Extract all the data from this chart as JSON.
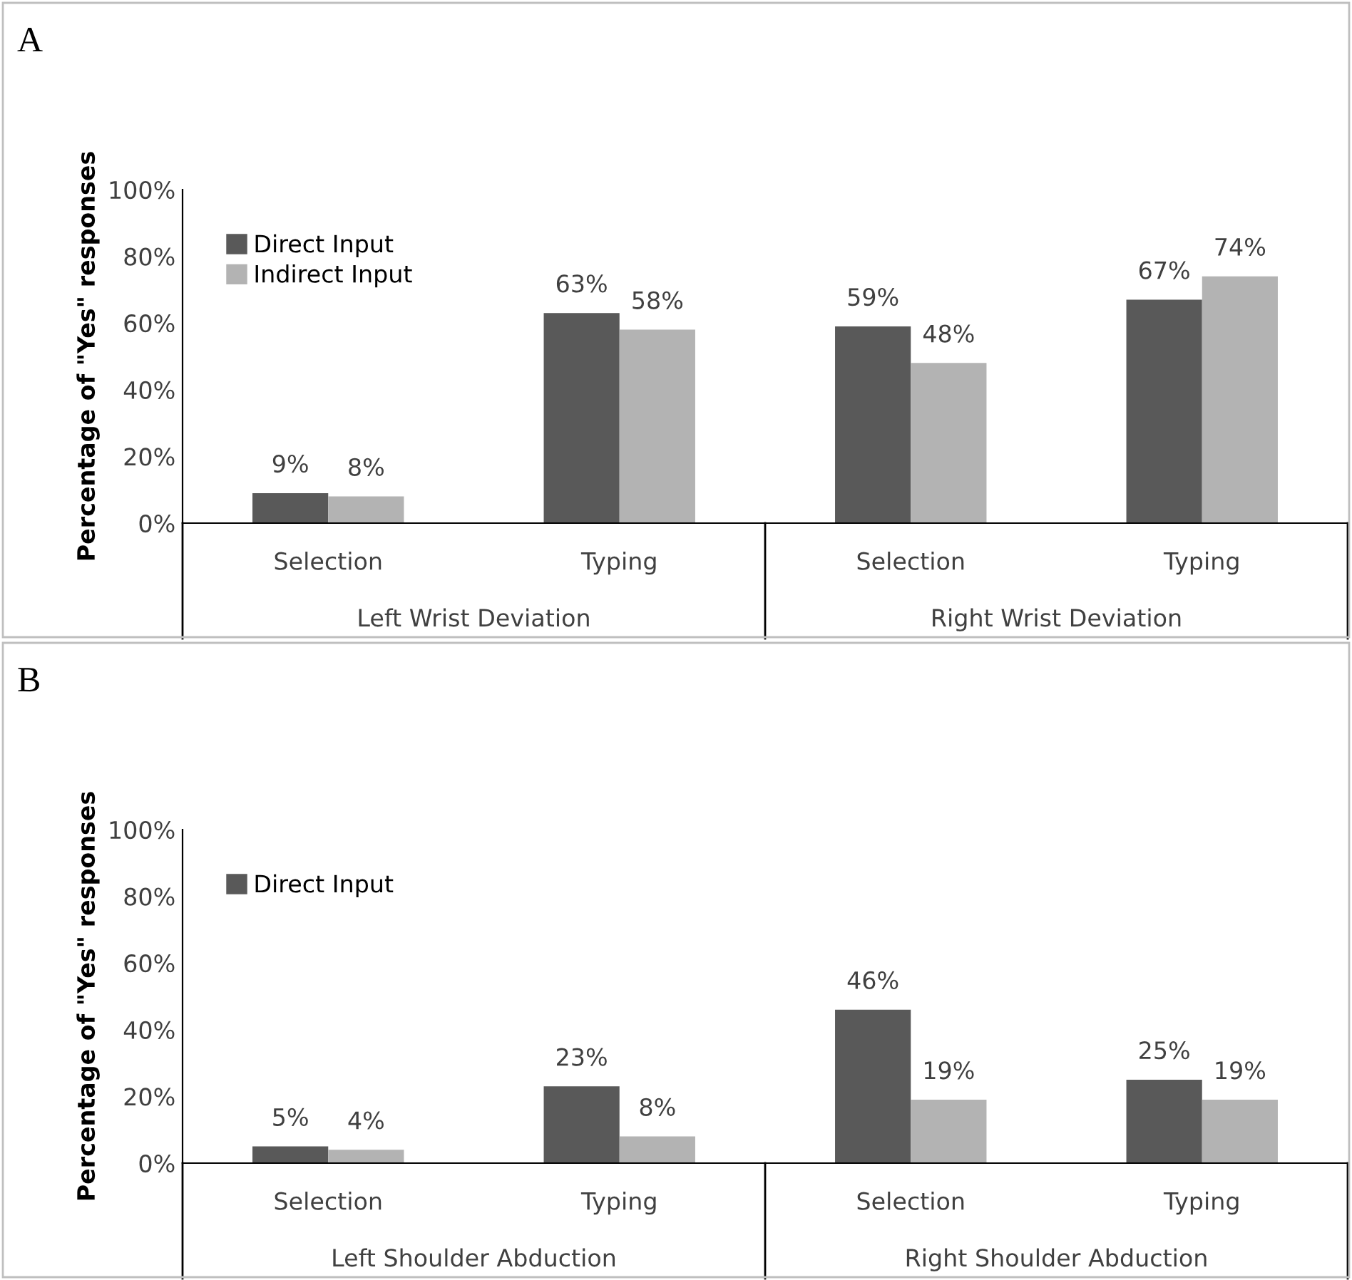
{
  "chart_data": [
    {
      "type": "bar",
      "title": "A",
      "ylabel": "Percentage of \"Yes\" responses",
      "categories": [
        "Selection",
        "Typing",
        "Selection",
        "Typing"
      ],
      "annotations": [
        "Left Wrist Deviation",
        "Right Wrist Deviation"
      ],
      "series": [
        {
          "name": "Direct Input",
          "color": "#595959",
          "values": [
            9,
            63,
            59,
            67
          ],
          "value_labels": [
            "9%",
            "63%",
            "59%",
            "67%"
          ]
        },
        {
          "name": "Indirect Input",
          "color": "#b3b3b3",
          "values": [
            8,
            58,
            48,
            74
          ],
          "value_labels": [
            "8%",
            "58%",
            "48%",
            "74%"
          ]
        }
      ],
      "ylim": [
        0,
        100
      ],
      "yticks": [
        {
          "value": 0,
          "label": "0%"
        },
        {
          "value": 20,
          "label": "20%"
        },
        {
          "value": 40,
          "label": "40%"
        },
        {
          "value": 60,
          "label": "60%"
        },
        {
          "value": 80,
          "label": "80%"
        },
        {
          "value": 100,
          "label": "100%"
        }
      ],
      "legend": "top left",
      "grid": false
    },
    {
      "type": "bar",
      "title": "B",
      "ylabel": "Percentage of \"Yes\" responses",
      "categories": [
        "Selection",
        "Typing",
        "Selection",
        "Typing"
      ],
      "annotations": [
        "Left Shoulder Abduction",
        "Right Shoulder Abduction"
      ],
      "series": [
        {
          "name": "Direct Input",
          "color": "#595959",
          "values": [
            5,
            23,
            46,
            25
          ],
          "value_labels": [
            "5%",
            "23%",
            "46%",
            "25%"
          ]
        },
        {
          "color": "#b3b3b3",
          "values": [
            4,
            8,
            19,
            19
          ],
          "value_labels": [
            "4%",
            "8%",
            "19%",
            "19%"
          ]
        }
      ],
      "ylim": [
        0,
        100
      ],
      "yticks": [
        {
          "value": 0,
          "label": "0%"
        },
        {
          "value": 20,
          "label": "20%"
        },
        {
          "value": 40,
          "label": "40%"
        },
        {
          "value": 60,
          "label": "60%"
        },
        {
          "value": 80,
          "label": "80%"
        },
        {
          "value": 100,
          "label": "100%"
        }
      ],
      "legend": "top left",
      "grid": false
    }
  ]
}
